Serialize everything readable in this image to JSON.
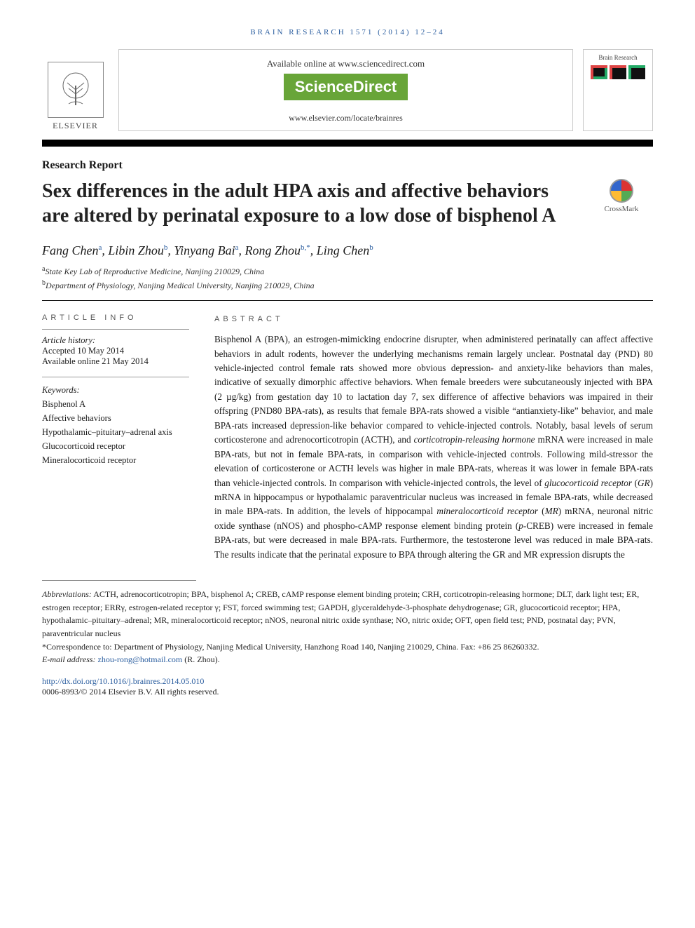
{
  "running_head": "BRAIN RESEARCH 1571 (2014) 12–24",
  "header": {
    "available_text": "Available online at www.sciencedirect.com",
    "sd_logo_text": "ScienceDirect",
    "journal_url": "www.elsevier.com/locate/brainres",
    "publisher_name": "ELSEVIER",
    "cover_label": "Brain Research"
  },
  "article_type": "Research Report",
  "title": "Sex differences in the adult HPA axis and affective behaviors are altered by perinatal exposure to a low dose of bisphenol A",
  "crossmark_label": "CrossMark",
  "authors_html": "Fang Chen<sup class='aff'>a</sup>, Libin Zhou<sup class='aff'>b</sup>, Yinyang Bai<sup class='aff'>a</sup>, Rong Zhou<sup class='aff'>b,*</sup>, Ling Chen<sup class='aff'>b</sup>",
  "affiliations": [
    {
      "sup": "a",
      "text": "State Key Lab of Reproductive Medicine, Nanjing 210029, China"
    },
    {
      "sup": "b",
      "text": "Department of Physiology, Nanjing Medical University, Nanjing 210029, China"
    }
  ],
  "article_info": {
    "head": "ARTICLE INFO",
    "history_label": "Article history:",
    "accepted": "Accepted 10 May 2014",
    "online": "Available online 21 May 2014",
    "keywords_label": "Keywords:",
    "keywords": [
      "Bisphenol A",
      "Affective behaviors",
      "Hypothalamic–pituitary–adrenal axis",
      "Glucocorticoid receptor",
      "Mineralocorticoid receptor"
    ]
  },
  "abstract": {
    "head": "ABSTRACT",
    "text_parts": [
      "Bisphenol A (BPA), an estrogen-mimicking endocrine disrupter, when administered perinatally can affect affective behaviors in adult rodents, however the underlying mechanisms remain largely unclear. Postnatal day (PND) 80 vehicle-injected control female rats showed more obvious depression- and anxiety-like behaviors than males, indicative of sexually dimorphic affective behaviors. When female breeders were subcutaneously injected with BPA (2 µg/kg) from gestation day 10 to lactation day 7, sex difference of affective behaviors was impaired in their offspring (PND80 BPA-rats), as results that female BPA-rats showed a visible “antianxiety-like” behavior, and male BPA-rats increased depression-like behavior compared to vehicle-injected controls. Notably, basal levels of serum corticosterone and adrenocorticotropin (ACTH), and ",
      "corticotropin-releasing hormone",
      " mRNA were increased in male BPA-rats, but not in female BPA-rats, in comparison with vehicle-injected controls. Following mild-stressor the elevation of corticosterone or ACTH levels was higher in male BPA-rats, whereas it was lower in female BPA-rats than vehicle-injected controls. In comparison with vehicle-injected controls, the level of ",
      "glucocorticoid receptor",
      " (",
      "GR",
      ") mRNA in hippocampus or hypothalamic paraventricular nucleus was increased in female BPA-rats, while decreased in male BPA-rats. In addition, the levels of hippocampal ",
      "mineralocorticoid receptor",
      " (",
      "MR",
      ") mRNA, neuronal nitric oxide synthase (nNOS) and phospho-cAMP response element binding protein (",
      "p",
      "-CREB) were increased in female BPA-rats, but were decreased in male BPA-rats. Furthermore, the testosterone level was reduced in male BPA-rats. The results indicate that the perinatal exposure to BPA through altering the GR and MR expression disrupts the"
    ]
  },
  "footnotes": {
    "abbreviations_label": "Abbreviations:",
    "abbreviations": "ACTH,  adrenocorticotropin; BPA,  bisphenol A; CREB,  cAMP response element binding protein; CRH,  corticotropin-releasing hormone; DLT,  dark light test; ER,  estrogen receptor; ERRγ,  estrogen-related receptor γ; FST,  forced swimming test; GAPDH,  glyceraldehyde-3-phosphate dehydrogenase; GR,  glucocorticoid receptor; HPA,  hypothalamic–pituitary–adrenal; MR,  mineralocorticoid receptor; nNOS,  neuronal nitric oxide synthase; NO,  nitric oxide; OFT,  open field test; PND,  postnatal day; PVN,  paraventricular nucleus",
    "correspondence": "*Correspondence to: Department of Physiology, Nanjing Medical University, Hanzhong Road 140, Nanjing 210029, China. Fax: +86 25 86260332.",
    "email_label": "E-mail address:",
    "email": "zhou-rong@hotmail.com",
    "email_name": "(R. Zhou)."
  },
  "doi": "http://dx.doi.org/10.1016/j.brainres.2014.05.010",
  "copyright": "0006-8993/© 2014 Elsevier B.V. All rights reserved."
}
